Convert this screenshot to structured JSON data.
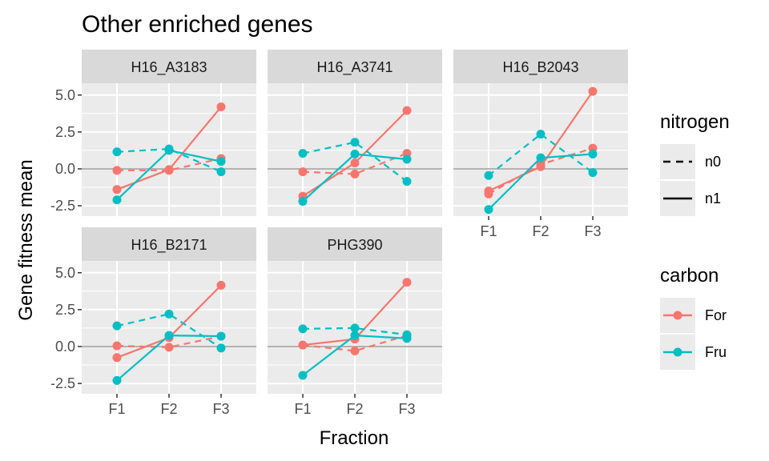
{
  "chart_data": {
    "type": "line",
    "title": "Other enriched genes",
    "xlabel": "Fraction",
    "ylabel": "Gene fitness mean",
    "x": [
      "F1",
      "F2",
      "F3"
    ],
    "y_ticks": [
      "-2.5",
      "0.0",
      "2.5",
      "5.0"
    ],
    "y_tick_values": [
      -2.5,
      0,
      2.5,
      5
    ],
    "ylim": [
      -3.2,
      5.8
    ],
    "reference_line_y": 0,
    "grid": true,
    "legend_placement": "right",
    "legends": {
      "nitrogen": {
        "title": "nitrogen",
        "entries": [
          {
            "label": "n0",
            "linetype": "dashed"
          },
          {
            "label": "n1",
            "linetype": "solid"
          }
        ]
      },
      "carbon": {
        "title": "carbon",
        "entries": [
          {
            "label": "For",
            "color": "#F8766D"
          },
          {
            "label": "Fru",
            "color": "#00BFC4"
          }
        ]
      }
    },
    "colors": {
      "For": "#F8766D",
      "Fru": "#00BFC4",
      "panel_bg": "#EBEBEB",
      "strip_bg": "#D9D9D9",
      "grid": "#FFFFFF",
      "reference": "#B3B3B3"
    },
    "panels": [
      {
        "name": "H16_A3183",
        "series": [
          {
            "carbon": "For",
            "nitrogen": "n0",
            "values": [
              -0.1,
              -0.1,
              0.7
            ]
          },
          {
            "carbon": "For",
            "nitrogen": "n1",
            "values": [
              -1.4,
              -0.05,
              4.2
            ]
          },
          {
            "carbon": "Fru",
            "nitrogen": "n0",
            "values": [
              1.15,
              1.35,
              -0.2
            ]
          },
          {
            "carbon": "Fru",
            "nitrogen": "n1",
            "values": [
              -2.1,
              1.25,
              0.5
            ]
          }
        ]
      },
      {
        "name": "H16_A3741",
        "series": [
          {
            "carbon": "For",
            "nitrogen": "n0",
            "values": [
              -0.2,
              -0.35,
              1.05
            ]
          },
          {
            "carbon": "For",
            "nitrogen": "n1",
            "values": [
              -1.85,
              0.4,
              3.95
            ]
          },
          {
            "carbon": "Fru",
            "nitrogen": "n0",
            "values": [
              1.05,
              1.8,
              -0.85
            ]
          },
          {
            "carbon": "Fru",
            "nitrogen": "n1",
            "values": [
              -2.2,
              1.0,
              0.65
            ]
          }
        ]
      },
      {
        "name": "H16_B2043",
        "series": [
          {
            "carbon": "For",
            "nitrogen": "n0",
            "values": [
              -1.7,
              0.3,
              1.4
            ]
          },
          {
            "carbon": "For",
            "nitrogen": "n1",
            "values": [
              -1.5,
              0.15,
              5.25
            ]
          },
          {
            "carbon": "Fru",
            "nitrogen": "n0",
            "values": [
              -0.45,
              2.35,
              -0.25
            ]
          },
          {
            "carbon": "Fru",
            "nitrogen": "n1",
            "values": [
              -2.75,
              0.75,
              1.0
            ]
          }
        ]
      },
      {
        "name": "H16_B2171",
        "series": [
          {
            "carbon": "For",
            "nitrogen": "n0",
            "values": [
              0.05,
              -0.05,
              0.7
            ]
          },
          {
            "carbon": "For",
            "nitrogen": "n1",
            "values": [
              -0.75,
              0.6,
              4.15
            ]
          },
          {
            "carbon": "Fru",
            "nitrogen": "n0",
            "values": [
              1.4,
              2.2,
              -0.1
            ]
          },
          {
            "carbon": "Fru",
            "nitrogen": "n1",
            "values": [
              -2.3,
              0.75,
              0.7
            ]
          }
        ]
      },
      {
        "name": "PHG390",
        "series": [
          {
            "carbon": "For",
            "nitrogen": "n0",
            "values": [
              0.1,
              -0.3,
              0.75
            ]
          },
          {
            "carbon": "For",
            "nitrogen": "n1",
            "values": [
              0.1,
              0.5,
              4.35
            ]
          },
          {
            "carbon": "Fru",
            "nitrogen": "n0",
            "values": [
              1.2,
              1.25,
              0.8
            ]
          },
          {
            "carbon": "Fru",
            "nitrogen": "n1",
            "values": [
              -1.95,
              0.75,
              0.55
            ]
          }
        ]
      }
    ]
  }
}
